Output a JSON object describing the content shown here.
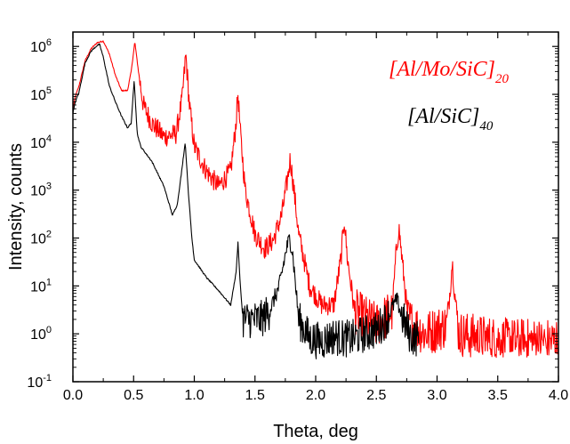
{
  "chart_data": {
    "type": "line",
    "xlabel": "Theta, deg",
    "ylabel": "Intensity, counts",
    "xlim": [
      0.0,
      4.0
    ],
    "ylim": [
      0.1,
      2000000
    ],
    "yscale": "log",
    "grid": false,
    "legend_position": "top-right",
    "x_ticks": [
      {
        "value": 0.0,
        "label": "0.0"
      },
      {
        "value": 0.5,
        "label": "0.5"
      },
      {
        "value": 1.0,
        "label": "1.0"
      },
      {
        "value": 1.5,
        "label": "1.5"
      },
      {
        "value": 2.0,
        "label": "2.0"
      },
      {
        "value": 2.5,
        "label": "2.5"
      },
      {
        "value": 3.0,
        "label": "3.0"
      },
      {
        "value": 3.5,
        "label": "3.5"
      },
      {
        "value": 4.0,
        "label": "4.0"
      }
    ],
    "y_ticks": [
      {
        "value": 0.1,
        "base": "10",
        "exp": "-1"
      },
      {
        "value": 1,
        "base": "10",
        "exp": "0"
      },
      {
        "value": 10,
        "base": "10",
        "exp": "1"
      },
      {
        "value": 100,
        "base": "10",
        "exp": "2"
      },
      {
        "value": 1000,
        "base": "10",
        "exp": "3"
      },
      {
        "value": 10000,
        "base": "10",
        "exp": "4"
      },
      {
        "value": 100000,
        "base": "10",
        "exp": "5"
      },
      {
        "value": 1000000,
        "base": "10",
        "exp": "6"
      }
    ],
    "series": [
      {
        "name": "[Al/Mo/SiC]20",
        "label_main": "[Al/Mo/SiC]",
        "label_sub": "20",
        "color": "#ff0000",
        "noise": 0.22,
        "noise_from": 0.55,
        "points": [
          [
            0.0,
            50000
          ],
          [
            0.02,
            90000
          ],
          [
            0.05,
            150000
          ],
          [
            0.1,
            500000
          ],
          [
            0.15,
            900000
          ],
          [
            0.2,
            1200000
          ],
          [
            0.25,
            1300000
          ],
          [
            0.3,
            700000
          ],
          [
            0.35,
            250000
          ],
          [
            0.4,
            120000
          ],
          [
            0.45,
            120000
          ],
          [
            0.48,
            300000
          ],
          [
            0.51,
            1250000
          ],
          [
            0.54,
            300000
          ],
          [
            0.58,
            60000
          ],
          [
            0.65,
            25000
          ],
          [
            0.75,
            13000
          ],
          [
            0.85,
            15000
          ],
          [
            0.9,
            80000
          ],
          [
            0.93,
            680000
          ],
          [
            0.96,
            60000
          ],
          [
            1.0,
            8000
          ],
          [
            1.1,
            2500
          ],
          [
            1.2,
            1200
          ],
          [
            1.3,
            2500
          ],
          [
            1.34,
            20000
          ],
          [
            1.36,
            100000
          ],
          [
            1.38,
            15000
          ],
          [
            1.42,
            1000
          ],
          [
            1.5,
            120
          ],
          [
            1.58,
            60
          ],
          [
            1.65,
            90
          ],
          [
            1.72,
            300
          ],
          [
            1.77,
            1800
          ],
          [
            1.79,
            4500
          ],
          [
            1.81,
            1800
          ],
          [
            1.86,
            120
          ],
          [
            1.95,
            10
          ],
          [
            2.05,
            4
          ],
          [
            2.15,
            4
          ],
          [
            2.21,
            40
          ],
          [
            2.235,
            260
          ],
          [
            2.26,
            40
          ],
          [
            2.32,
            3
          ],
          [
            2.5,
            1.5
          ],
          [
            2.63,
            3
          ],
          [
            2.66,
            40
          ],
          [
            2.685,
            170
          ],
          [
            2.71,
            40
          ],
          [
            2.76,
            2
          ],
          [
            2.9,
            1
          ],
          [
            3.08,
            1.5
          ],
          [
            3.11,
            10
          ],
          [
            3.125,
            32
          ],
          [
            3.14,
            10
          ],
          [
            3.18,
            1
          ],
          [
            3.4,
            0.8
          ],
          [
            3.6,
            0.7
          ],
          [
            3.8,
            0.7
          ],
          [
            4.0,
            0.7
          ]
        ]
      },
      {
        "name": "[Al/SiC]40",
        "label_main": "[Al/SiC]",
        "label_sub": "40",
        "color": "#000000",
        "noise": 0.18,
        "noise_from": 1.4,
        "points": [
          [
            0.0,
            40000
          ],
          [
            0.02,
            70000
          ],
          [
            0.05,
            110000
          ],
          [
            0.1,
            450000
          ],
          [
            0.15,
            800000
          ],
          [
            0.2,
            1050000
          ],
          [
            0.22,
            1100000
          ],
          [
            0.25,
            600000
          ],
          [
            0.3,
            150000
          ],
          [
            0.35,
            70000
          ],
          [
            0.4,
            35000
          ],
          [
            0.45,
            20000
          ],
          [
            0.48,
            25000
          ],
          [
            0.505,
            200000
          ],
          [
            0.53,
            15000
          ],
          [
            0.56,
            8000
          ],
          [
            0.65,
            4000
          ],
          [
            0.75,
            1200
          ],
          [
            0.82,
            300
          ],
          [
            0.86,
            500
          ],
          [
            0.9,
            3000
          ],
          [
            0.925,
            10000
          ],
          [
            0.95,
            1000
          ],
          [
            0.98,
            100
          ],
          [
            1.0,
            35
          ],
          [
            1.1,
            15
          ],
          [
            1.2,
            8
          ],
          [
            1.3,
            4
          ],
          [
            1.345,
            20
          ],
          [
            1.36,
            80
          ],
          [
            1.375,
            15
          ],
          [
            1.4,
            2
          ],
          [
            1.45,
            2
          ],
          [
            1.55,
            2
          ],
          [
            1.62,
            3
          ],
          [
            1.7,
            10
          ],
          [
            1.76,
            60
          ],
          [
            1.785,
            100
          ],
          [
            1.81,
            50
          ],
          [
            1.86,
            2
          ],
          [
            1.95,
            0.8
          ],
          [
            2.05,
            0.7
          ],
          [
            2.15,
            0.9
          ],
          [
            2.22,
            0.8
          ],
          [
            2.3,
            0.8
          ],
          [
            2.4,
            1
          ],
          [
            2.5,
            1.2
          ],
          [
            2.58,
            2
          ],
          [
            2.64,
            4
          ],
          [
            2.67,
            5
          ],
          [
            2.72,
            2
          ],
          [
            2.78,
            0.9
          ],
          [
            2.85,
            0.8
          ]
        ]
      }
    ]
  }
}
